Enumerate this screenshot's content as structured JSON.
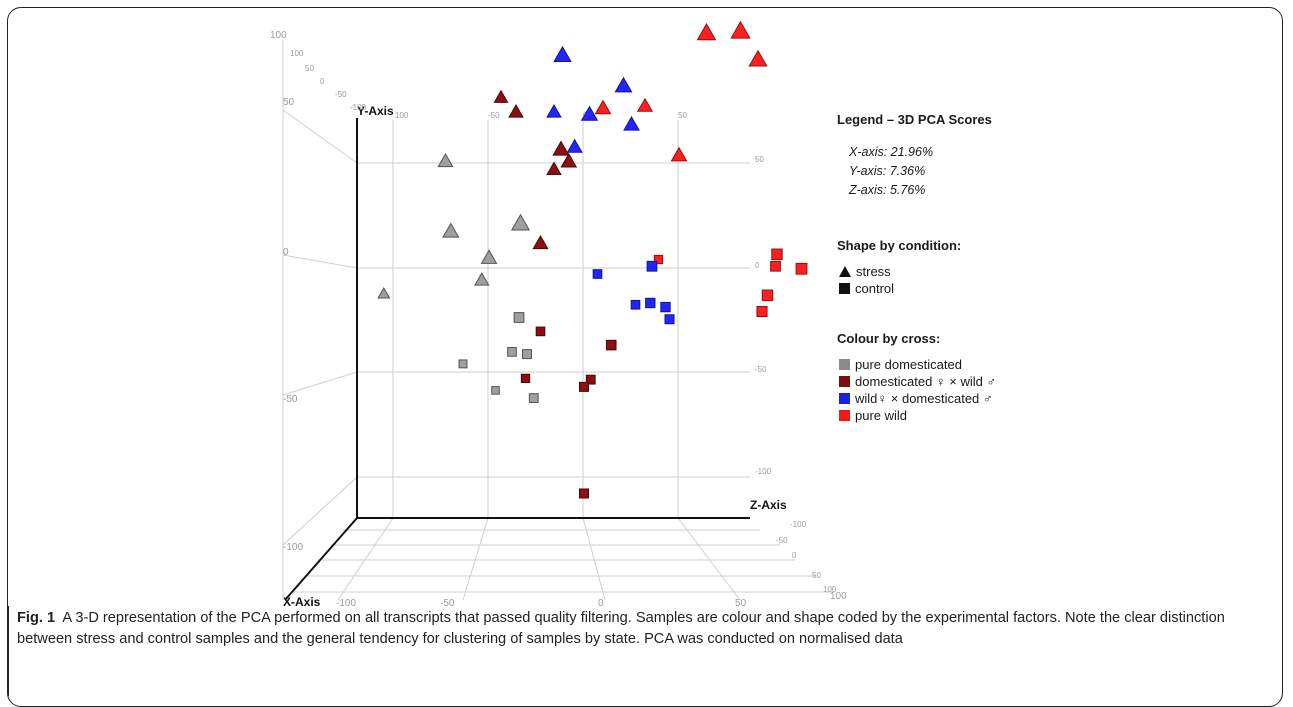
{
  "legend": {
    "title": "Legend – 3D PCA Scores",
    "variance": [
      "X-axis: 21.96%",
      "Y-axis: 7.36%",
      "Z-axis: 5.76%"
    ],
    "shape_title": "Shape by condition:",
    "shapes": [
      {
        "symbol": "triangle",
        "label": "stress"
      },
      {
        "symbol": "square",
        "label": "control"
      }
    ],
    "colour_title": "Colour  by cross:",
    "colours": [
      {
        "label": "pure domesticated",
        "color": "#8a8a8a"
      },
      {
        "label": "domesticated ♀ × wild ♂",
        "color": "#7a0e0e"
      },
      {
        "label": "wild♀ × domesticated ♂",
        "color": "#1f1fe0"
      },
      {
        "label": "pure wild",
        "color": "#ee1b1b"
      }
    ]
  },
  "caption": {
    "label": "Fig. 1",
    "text": "A 3-D representation of the PCA performed on all transcripts that passed quality filtering. Samples are colour and shape coded by the experimental factors. Note the clear distinction between stress and control samples and the general tendency for clustering of samples by state. PCA was conducted on normalised data"
  },
  "chart_data": {
    "type": "scatter",
    "projection": "3d",
    "axis_labels": {
      "x": "X-Axis",
      "y": "Y-Axis",
      "z": "Z-Axis"
    },
    "variance_explained": {
      "x": 21.96,
      "y": 7.36,
      "z": 5.76
    },
    "axis_ticks": {
      "y_left": [
        "100",
        "50",
        "0",
        "-50",
        "-100"
      ],
      "x_front": [
        "-100",
        "-50",
        "0",
        "50",
        "100"
      ],
      "z_right": [
        "-100",
        "-50",
        "0",
        "50",
        "100"
      ],
      "back_wall": [
        "100",
        "50",
        "0",
        "-50",
        "-100"
      ]
    },
    "series": [
      {
        "name": "pure domesticated",
        "condition": "stress",
        "color": "#8a8a8a",
        "points": [
          [
            -60,
            55,
            10
          ],
          [
            -63,
            15,
            -10
          ],
          [
            -78,
            5,
            60
          ],
          [
            -40,
            5,
            0
          ],
          [
            -35,
            10,
            -40
          ],
          [
            -38,
            0,
            20
          ]
        ]
      },
      {
        "name": "pure domesticated",
        "condition": "control",
        "color": "#8a8a8a",
        "points": [
          [
            -45,
            -38,
            30
          ],
          [
            -30,
            -30,
            -20
          ],
          [
            -25,
            -38,
            10
          ],
          [
            -20,
            -42,
            0
          ],
          [
            -25,
            -48,
            40
          ],
          [
            -15,
            -62,
            5
          ]
        ]
      },
      {
        "name": "domesticated ♀ × wild ♂",
        "condition": "stress",
        "color": "#7a0e0e",
        "points": [
          [
            -25,
            92,
            30
          ],
          [
            -20,
            82,
            20
          ],
          [
            -5,
            55,
            -10
          ],
          [
            0,
            54,
            20
          ],
          [
            2,
            52,
            0
          ],
          [
            -10,
            15,
            10
          ]
        ]
      },
      {
        "name": "domesticated ♀ × wild ♂",
        "condition": "control",
        "color": "#7a0e0e",
        "points": [
          [
            -10,
            -28,
            10
          ],
          [
            -15,
            -48,
            20
          ],
          [
            10,
            -58,
            0
          ],
          [
            15,
            -53,
            5
          ],
          [
            20,
            -42,
            -15
          ],
          [
            10,
            -110,
            0
          ]
        ]
      },
      {
        "name": "wild♀ × domesticated ♂",
        "condition": "stress",
        "color": "#1f1fe0",
        "points": [
          [
            -10,
            95,
            -30
          ],
          [
            0,
            82,
            20
          ],
          [
            10,
            72,
            -10
          ],
          [
            25,
            83,
            -20
          ],
          [
            35,
            70,
            0
          ],
          [
            8,
            62,
            10
          ]
        ]
      },
      {
        "name": "wild♀ × domesticated ♂",
        "condition": "control",
        "color": "#1f1fe0",
        "points": [
          [
            20,
            0,
            10
          ],
          [
            40,
            -5,
            -20
          ],
          [
            50,
            -22,
            -10
          ],
          [
            55,
            -25,
            0
          ],
          [
            40,
            -15,
            10
          ],
          [
            42,
            -20,
            -10
          ]
        ]
      },
      {
        "name": "pure wild",
        "condition": "stress",
        "color": "#ee1b1b",
        "points": [
          [
            60,
            100,
            -50
          ],
          [
            75,
            98,
            -60
          ],
          [
            90,
            90,
            -40
          ],
          [
            45,
            82,
            10
          ],
          [
            20,
            78,
            0
          ],
          [
            60,
            55,
            0
          ]
        ]
      },
      {
        "name": "pure wild",
        "condition": "control",
        "color": "#ee1b1b",
        "points": [
          [
            55,
            10,
            20
          ],
          [
            100,
            -5,
            -40
          ],
          [
            110,
            -15,
            -50
          ],
          [
            105,
            -5,
            -20
          ],
          [
            95,
            -25,
            -40
          ],
          [
            95,
            -30,
            -30
          ]
        ]
      }
    ]
  }
}
